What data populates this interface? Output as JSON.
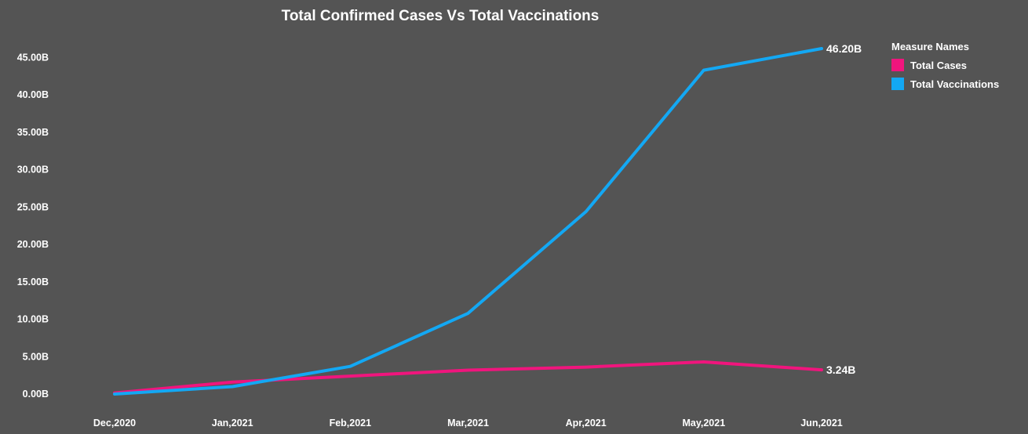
{
  "colors": {
    "background": "#545454",
    "total_cases": "#f0157d",
    "total_vaccinations": "#13a8f4"
  },
  "chart_data": {
    "type": "line",
    "title": "Total Confirmed Cases Vs Total Vaccinations",
    "xlabel": "",
    "ylabel": "",
    "categories": [
      "Dec,2020",
      "Jan,2021",
      "Feb,2021",
      "Mar,2021",
      "Apr,2021",
      "May,2021",
      "Jun,2021"
    ],
    "yticks": [
      "0.00B",
      "5.00B",
      "10.00B",
      "15.00B",
      "20.00B",
      "25.00B",
      "30.00B",
      "35.00B",
      "40.00B",
      "45.00B"
    ],
    "ylim": [
      0,
      48.5
    ],
    "grid": false,
    "legend_position": "top-right",
    "legend_title": "Measure Names",
    "series": [
      {
        "name": "Total Cases",
        "color": "#f0157d",
        "values": [
          0.15,
          1.6,
          2.4,
          3.2,
          3.6,
          4.3,
          3.24
        ],
        "end_label": "3.24B"
      },
      {
        "name": "Total Vaccinations",
        "color": "#13a8f4",
        "values": [
          0.0,
          1.0,
          3.7,
          10.8,
          24.4,
          43.3,
          46.2
        ],
        "end_label": "46.20B"
      }
    ]
  }
}
